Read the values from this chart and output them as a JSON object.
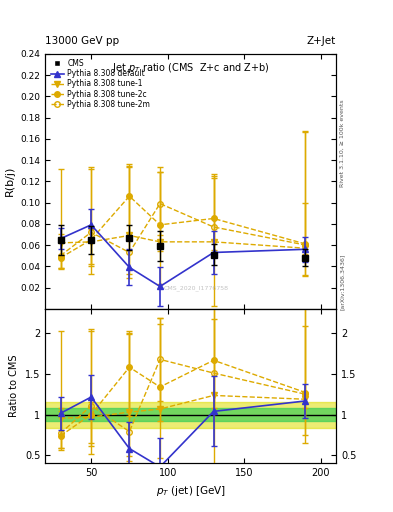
{
  "title_top": "13000 GeV pp",
  "title_right": "Z+Jet",
  "plot_title": "Jet p_{T} ratio (CMS  Z+c and Z+b)",
  "ylabel_main": "R(b/j)",
  "ylabel_ratio": "Ratio to CMS",
  "xlabel": "p_{T} (jet) [GeV]",
  "right_label_top": "Rivet 3.1.10, ≥ 100k events",
  "right_label_bottom": "[arXiv:1306.3436]",
  "watermark": "CMS_2020_I1776758",
  "cms_x": [
    30,
    50,
    75,
    95,
    130,
    190
  ],
  "cms_y": [
    0.065,
    0.065,
    0.067,
    0.059,
    0.051,
    0.048
  ],
  "cms_yerr": [
    0.014,
    0.013,
    0.012,
    0.014,
    0.01,
    0.008
  ],
  "default_x": [
    30,
    50,
    75,
    95,
    130,
    190
  ],
  "default_y": [
    0.066,
    0.079,
    0.039,
    0.021,
    0.053,
    0.056
  ],
  "default_yerr": [
    0.01,
    0.015,
    0.017,
    0.018,
    0.02,
    0.012
  ],
  "tune1_x": [
    30,
    50,
    75,
    95,
    130,
    190
  ],
  "tune1_y": [
    0.062,
    0.063,
    0.069,
    0.063,
    0.063,
    0.057
  ],
  "tune1_yerr_lo": [
    0.025,
    0.03,
    0.04,
    0.04,
    0.06,
    0.025
  ],
  "tune1_yerr_hi": [
    0.07,
    0.07,
    0.065,
    0.07,
    0.06,
    0.11
  ],
  "tune2c_x": [
    30,
    50,
    75,
    95,
    130,
    190
  ],
  "tune2c_y": [
    0.048,
    0.065,
    0.106,
    0.079,
    0.085,
    0.061
  ],
  "tune2c_yerr_lo": [
    0.01,
    0.025,
    0.04,
    0.025,
    0.03,
    0.03
  ],
  "tune2c_yerr_hi": [
    0.02,
    0.01,
    0.03,
    0.05,
    0.04,
    0.105
  ],
  "tune2m_x": [
    30,
    50,
    75,
    95,
    130,
    190
  ],
  "tune2m_y": [
    0.05,
    0.072,
    0.053,
    0.099,
    0.077,
    0.06
  ],
  "tune2m_yerr_lo": [
    0.012,
    0.03,
    0.02,
    0.03,
    0.025,
    0.008
  ],
  "tune2m_yerr_hi": [
    0.02,
    0.06,
    0.08,
    0.03,
    0.05,
    0.04
  ],
  "cms_band_green_lo": 0.92,
  "cms_band_green_hi": 1.08,
  "cms_band_yellow_lo": 0.84,
  "cms_band_yellow_hi": 1.16,
  "ratio_default_y": [
    1.015,
    1.215,
    0.582,
    0.356,
    1.039,
    1.167
  ],
  "ratio_default_yerr_lo": [
    0.2,
    0.27,
    0.33,
    0.35,
    0.43,
    0.21
  ],
  "ratio_default_yerr_hi": [
    0.2,
    0.27,
    0.33,
    0.35,
    0.43,
    0.21
  ],
  "ratio_tune1_y": [
    0.954,
    0.969,
    1.03,
    1.068,
    1.235,
    1.188
  ],
  "ratio_tune1_yerr_lo": [
    0.385,
    0.46,
    0.597,
    0.598,
    0.94,
    0.435
  ],
  "ratio_tune1_yerr_hi": [
    1.077,
    1.077,
    0.97,
    1.05,
    0.94,
    1.95
  ],
  "ratio_tune2c_y": [
    0.738,
    1.0,
    1.582,
    1.339,
    1.667,
    1.271
  ],
  "ratio_tune2c_yerr_lo": [
    0.154,
    0.385,
    0.597,
    0.424,
    0.588,
    0.625
  ],
  "ratio_tune2c_yerr_hi": [
    0.308,
    0.154,
    0.448,
    0.847,
    0.784,
    2.187
  ],
  "ratio_tune2m_y": [
    0.769,
    1.108,
    0.791,
    1.678,
    1.51,
    1.25
  ],
  "ratio_tune2m_yerr_lo": [
    0.185,
    0.462,
    0.299,
    0.508,
    0.49,
    0.167
  ],
  "ratio_tune2m_yerr_hi": [
    0.308,
    0.923,
    1.194,
    0.508,
    0.98,
    0.833
  ],
  "colors": {
    "cms": "#000000",
    "default": "#3333cc",
    "tune1": "#ddaa00",
    "tune2c": "#ddaa00",
    "tune2m": "#ddaa00",
    "band_green": "#33cc55",
    "band_yellow": "#dddd00"
  },
  "ylim_main": [
    0.0,
    0.24
  ],
  "ylim_ratio": [
    0.4,
    2.3
  ],
  "xlim": [
    20,
    210
  ]
}
